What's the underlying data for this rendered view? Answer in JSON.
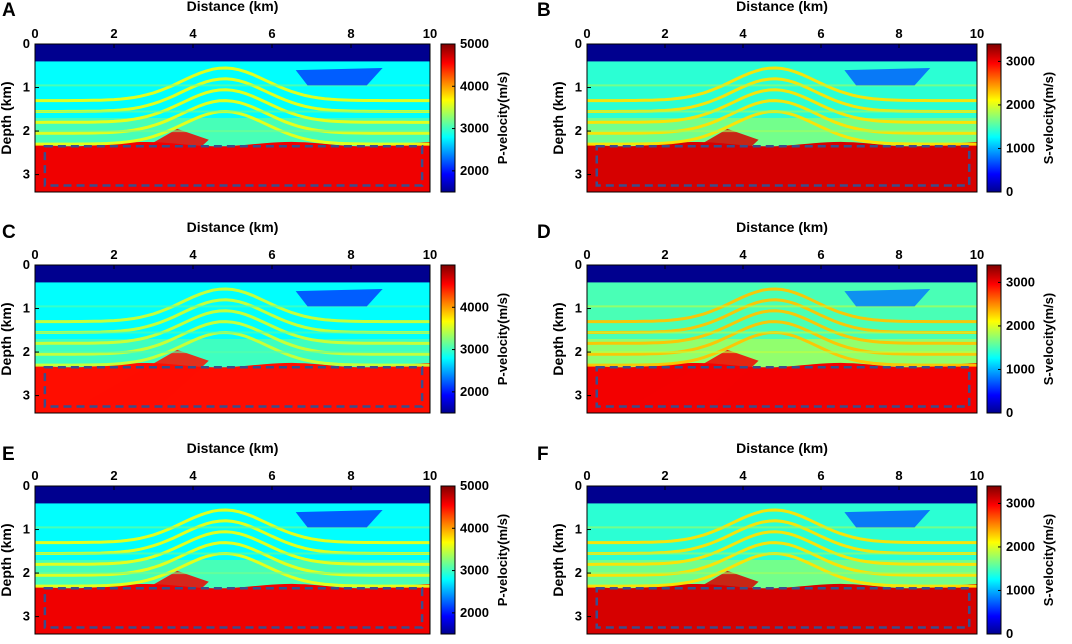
{
  "figure": {
    "distance_label": "Distance (km)",
    "depth_label": "Depth (km)"
  },
  "chart_data": [
    {
      "panel": "A",
      "type": "heatmap",
      "title": "",
      "xlabel": "Distance (km)",
      "ylabel": "Depth (km)",
      "xlim": [
        0,
        10
      ],
      "ylim": [
        3.4,
        0
      ],
      "xticks": [
        0,
        2,
        4,
        6,
        8,
        10
      ],
      "yticks": [
        0,
        1,
        2,
        3
      ],
      "colorbar": {
        "label": "P-velocity(m/s)",
        "range": [
          1500,
          5000
        ],
        "ticks": [
          2000,
          3000,
          4000,
          5000
        ],
        "colormap": "jet"
      },
      "sample_values": {
        "water_layer": 1500,
        "upper_sediments": 2800,
        "anticline_layers": 3600,
        "deep_layers": 4600
      },
      "annotation": {
        "type": "dashed-rectangle",
        "x_range": [
          0.25,
          9.8
        ],
        "depth_range": [
          2.35,
          3.25
        ],
        "color": "#3a4e8c"
      }
    },
    {
      "panel": "B",
      "type": "heatmap",
      "title": "",
      "xlabel": "Distance (km)",
      "ylabel": "Depth (km)",
      "xlim": [
        0,
        10
      ],
      "ylim": [
        3.4,
        0
      ],
      "xticks": [
        0,
        2,
        4,
        6,
        8,
        10
      ],
      "yticks": [
        0,
        1,
        2,
        3
      ],
      "colorbar": {
        "label": "S-velocity(m/s)",
        "range": [
          0,
          3400
        ],
        "ticks": [
          0,
          1000,
          2000,
          3000
        ],
        "colormap": "jet"
      },
      "sample_values": {
        "water_layer": 0,
        "upper_sediments": 1400,
        "anticline_layers": 2200,
        "deep_layers": 3100
      },
      "annotation": {
        "type": "dashed-rectangle",
        "x_range": [
          0.25,
          9.8
        ],
        "depth_range": [
          2.35,
          3.25
        ],
        "color": "#3a4e8c"
      }
    },
    {
      "panel": "C",
      "type": "heatmap",
      "title": "",
      "xlabel": "Distance (km)",
      "ylabel": "Depth (km)",
      "xlim": [
        0,
        10
      ],
      "ylim": [
        3.4,
        0
      ],
      "xticks": [
        0,
        2,
        4,
        6,
        8,
        10
      ],
      "yticks": [
        0,
        1,
        2,
        3
      ],
      "colorbar": {
        "label": "P-velocity(m/s)",
        "range": [
          1500,
          5000
        ],
        "ticks": [
          2000,
          3000,
          4000
        ],
        "colormap": "jet"
      },
      "sample_values": {
        "water_layer": 1500,
        "upper_sediments": 2800,
        "anticline_layers": 3500,
        "deep_layers": 4500
      },
      "annotation": {
        "type": "dashed-rectangle",
        "x_range": [
          0.25,
          9.8
        ],
        "depth_range": [
          2.35,
          3.25
        ],
        "color": "#3a4e8c"
      }
    },
    {
      "panel": "D",
      "type": "heatmap",
      "title": "",
      "xlabel": "Distance (km)",
      "ylabel": "Depth (km)",
      "xlim": [
        0,
        10
      ],
      "ylim": [
        3.4,
        0
      ],
      "xticks": [
        0,
        2,
        4,
        6,
        8,
        10
      ],
      "yticks": [
        0,
        1,
        2,
        3
      ],
      "colorbar": {
        "label": "S-velocity(m/s)",
        "range": [
          0,
          3400
        ],
        "ticks": [
          0,
          1000,
          2000,
          3000
        ],
        "colormap": "jet"
      },
      "sample_values": {
        "water_layer": 0,
        "upper_sediments": 1500,
        "anticline_layers": 2300,
        "deep_layers": 3000
      },
      "annotation": {
        "type": "dashed-rectangle",
        "x_range": [
          0.25,
          9.8
        ],
        "depth_range": [
          2.35,
          3.25
        ],
        "color": "#3a4e8c"
      }
    },
    {
      "panel": "E",
      "type": "heatmap",
      "title": "",
      "xlabel": "Distance (km)",
      "ylabel": "Depth (km)",
      "xlim": [
        0,
        10
      ],
      "ylim": [
        3.4,
        0
      ],
      "xticks": [
        0,
        2,
        4,
        6,
        8,
        10
      ],
      "yticks": [
        0,
        1,
        2,
        3
      ],
      "colorbar": {
        "label": "P-velocity(m/s)",
        "range": [
          1500,
          5000
        ],
        "ticks": [
          2000,
          3000,
          4000,
          5000
        ],
        "colormap": "jet"
      },
      "sample_values": {
        "water_layer": 1500,
        "upper_sediments": 2800,
        "anticline_layers": 3600,
        "deep_layers": 4600
      },
      "annotation": {
        "type": "dashed-rectangle",
        "x_range": [
          0.25,
          9.8
        ],
        "depth_range": [
          2.35,
          3.25
        ],
        "color": "#3a4e8c"
      }
    },
    {
      "panel": "F",
      "type": "heatmap",
      "title": "",
      "xlabel": "Distance (km)",
      "ylabel": "Depth (km)",
      "xlim": [
        0,
        10
      ],
      "ylim": [
        3.4,
        0
      ],
      "xticks": [
        0,
        2,
        4,
        6,
        8,
        10
      ],
      "yticks": [
        0,
        1,
        2,
        3
      ],
      "colorbar": {
        "label": "S-velocity(m/s)",
        "range": [
          0,
          3400
        ],
        "ticks": [
          0,
          1000,
          2000,
          3000
        ],
        "colormap": "jet"
      },
      "sample_values": {
        "water_layer": 0,
        "upper_sediments": 1400,
        "anticline_layers": 2200,
        "deep_layers": 3100
      },
      "annotation": {
        "type": "dashed-rectangle",
        "x_range": [
          0.25,
          9.8
        ],
        "depth_range": [
          2.35,
          3.25
        ],
        "color": "#3a4e8c"
      }
    }
  ]
}
